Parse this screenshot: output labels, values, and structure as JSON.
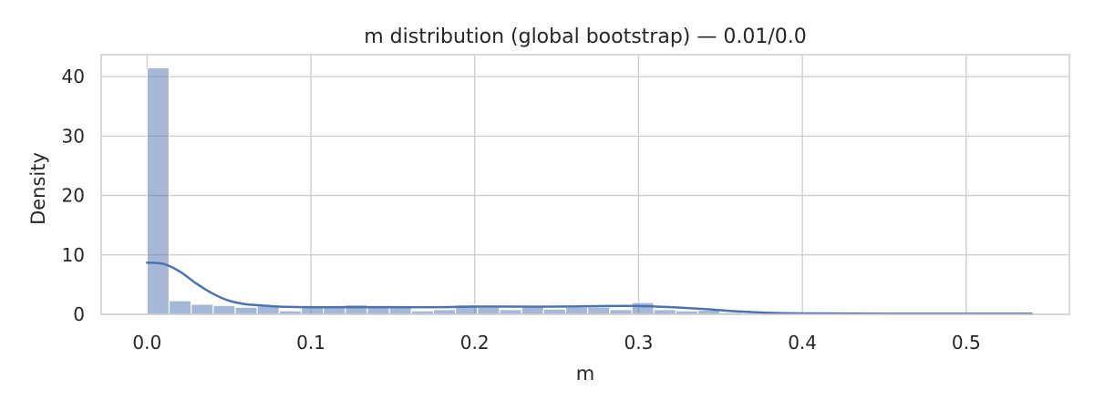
{
  "chart_data": {
    "type": "bar",
    "title": "m distribution (global bootstrap) — 0.01/0.0",
    "xlabel": "m",
    "ylabel": "Density",
    "xlim": [
      -0.028,
      0.563
    ],
    "ylim": [
      0,
      43.7
    ],
    "xticks": [
      0.0,
      0.1,
      0.2,
      0.3,
      0.4,
      0.5
    ],
    "xtick_labels": [
      "0.0",
      "0.1",
      "0.2",
      "0.3",
      "0.4",
      "0.5"
    ],
    "yticks": [
      0,
      10,
      20,
      30,
      40
    ],
    "ytick_labels": [
      "0",
      "10",
      "20",
      "30",
      "40"
    ],
    "grid": true,
    "bar_color": "#4c72b0",
    "kde_color": "#4c72b0",
    "bins": {
      "start": 0.0,
      "width": 0.01345,
      "values": [
        41.5,
        2.3,
        1.7,
        1.5,
        1.2,
        1.4,
        0.6,
        1.3,
        1.3,
        1.6,
        1.2,
        1.3,
        0.6,
        0.8,
        1.6,
        1.2,
        0.8,
        1.2,
        0.9,
        1.2,
        1.2,
        0.8,
        2.0,
        0.8,
        0.6,
        0.7,
        0.3,
        0.2,
        0.1,
        0.1,
        0.1,
        0.1,
        0.1,
        0.1,
        0.1,
        0.1,
        0.1,
        0.1,
        0.1,
        0.1
      ]
    },
    "kde": {
      "x": [
        0.0,
        0.01,
        0.02,
        0.03,
        0.04,
        0.05,
        0.06,
        0.07,
        0.08,
        0.1,
        0.12,
        0.15,
        0.18,
        0.2,
        0.22,
        0.25,
        0.28,
        0.3,
        0.32,
        0.34,
        0.36,
        0.38,
        0.4,
        0.45,
        0.5,
        0.54
      ],
      "y": [
        8.7,
        8.5,
        7.2,
        5.2,
        3.5,
        2.3,
        1.7,
        1.5,
        1.3,
        1.2,
        1.2,
        1.2,
        1.2,
        1.3,
        1.3,
        1.3,
        1.4,
        1.4,
        1.2,
        0.9,
        0.5,
        0.25,
        0.15,
        0.1,
        0.1,
        0.1
      ]
    }
  }
}
